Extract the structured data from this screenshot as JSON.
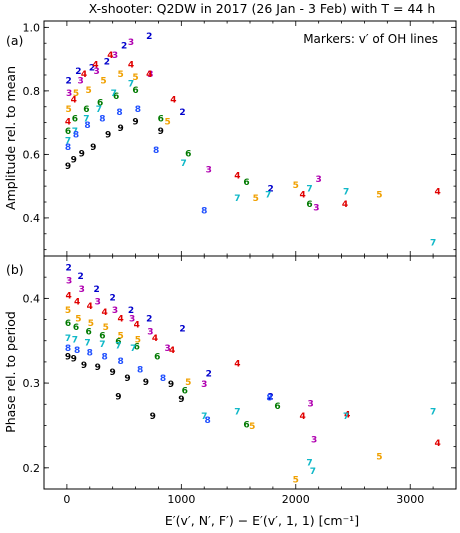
{
  "figure": {
    "title": "X-shooter: Q2DW in 2017 (26 Jan - 3 Feb) with T = 44 h",
    "xlabel": "E′(v′, N′, F′) − E′(v′, 1, 1) [cm⁻¹]"
  },
  "colors": {
    "2": "#0000cc",
    "3": "#b000b0",
    "4": "#e00000",
    "5": "#f0a000",
    "6": "#007a00",
    "7": "#10b8c8",
    "8": "#2050ff",
    "9": "#000000"
  },
  "chart_data": [
    {
      "type": "scatter",
      "panel_label": "(a)",
      "ylabel": "Amplitude rel. to mean",
      "annotation": "Markers: v′ of OH lines",
      "xlim": [
        -200,
        3400
      ],
      "ylim": [
        0.28,
        1.02
      ],
      "xticks": [
        0,
        1000,
        2000,
        3000
      ],
      "yticks": [
        0.4,
        0.6,
        0.8,
        1.0
      ],
      "ytick_labels": [
        "0.4",
        "0.6",
        "0.8",
        "1.0"
      ],
      "series": [
        {
          "marker": "2",
          "points": [
            [
              15,
              0.83
            ],
            [
              100,
              0.86
            ],
            [
              220,
              0.87
            ],
            [
              350,
              0.89
            ],
            [
              500,
              0.94
            ],
            [
              720,
              0.97
            ],
            [
              1010,
              0.73
            ],
            [
              1780,
              0.49
            ]
          ]
        },
        {
          "marker": "3",
          "points": [
            [
              20,
              0.79
            ],
            [
              120,
              0.83
            ],
            [
              260,
              0.86
            ],
            [
              420,
              0.91
            ],
            [
              560,
              0.95
            ],
            [
              730,
              0.85
            ],
            [
              1240,
              0.55
            ],
            [
              2180,
              0.43
            ],
            [
              2200,
              0.52
            ]
          ]
        },
        {
          "marker": "4",
          "points": [
            [
              10,
              0.7
            ],
            [
              60,
              0.77
            ],
            [
              150,
              0.85
            ],
            [
              250,
              0.88
            ],
            [
              380,
              0.91
            ],
            [
              560,
              0.88
            ],
            [
              720,
              0.85
            ],
            [
              930,
              0.77
            ],
            [
              1490,
              0.53
            ],
            [
              2060,
              0.47
            ],
            [
              2430,
              0.44
            ],
            [
              3240,
              0.48
            ]
          ]
        },
        {
          "marker": "5",
          "points": [
            [
              15,
              0.74
            ],
            [
              80,
              0.79
            ],
            [
              190,
              0.8
            ],
            [
              320,
              0.83
            ],
            [
              470,
              0.85
            ],
            [
              600,
              0.84
            ],
            [
              880,
              0.7
            ],
            [
              1650,
              0.46
            ],
            [
              2000,
              0.5
            ],
            [
              2730,
              0.47
            ]
          ]
        },
        {
          "marker": "6",
          "points": [
            [
              10,
              0.67
            ],
            [
              70,
              0.71
            ],
            [
              170,
              0.74
            ],
            [
              290,
              0.76
            ],
            [
              430,
              0.78
            ],
            [
              600,
              0.8
            ],
            [
              820,
              0.71
            ],
            [
              1060,
              0.6
            ],
            [
              1570,
              0.51
            ],
            [
              2120,
              0.44
            ]
          ]
        },
        {
          "marker": "7",
          "points": [
            [
              10,
              0.64
            ],
            [
              70,
              0.67
            ],
            [
              170,
              0.71
            ],
            [
              280,
              0.74
            ],
            [
              410,
              0.79
            ],
            [
              560,
              0.82
            ],
            [
              1020,
              0.57
            ],
            [
              1490,
              0.46
            ],
            [
              1760,
              0.47
            ],
            [
              2120,
              0.49
            ],
            [
              2440,
              0.48
            ],
            [
              3200,
              0.32
            ]
          ]
        },
        {
          "marker": "8",
          "points": [
            [
              10,
              0.62
            ],
            [
              80,
              0.66
            ],
            [
              180,
              0.69
            ],
            [
              310,
              0.71
            ],
            [
              460,
              0.73
            ],
            [
              620,
              0.74
            ],
            [
              780,
              0.61
            ],
            [
              1200,
              0.42
            ]
          ]
        },
        {
          "marker": "9",
          "points": [
            [
              10,
              0.56
            ],
            [
              60,
              0.58
            ],
            [
              130,
              0.6
            ],
            [
              230,
              0.62
            ],
            [
              360,
              0.66
            ],
            [
              470,
              0.68
            ],
            [
              600,
              0.7
            ],
            [
              820,
              0.67
            ]
          ]
        }
      ]
    },
    {
      "type": "scatter",
      "panel_label": "(b)",
      "ylabel": "Phase rel. to period",
      "xlim": [
        -200,
        3400
      ],
      "ylim": [
        0.175,
        0.45
      ],
      "xticks": [
        0,
        1000,
        2000,
        3000
      ],
      "yticks": [
        0.2,
        0.3,
        0.4
      ],
      "ytick_labels": [
        "0.2",
        "0.3",
        "0.4"
      ],
      "series": [
        {
          "marker": "2",
          "points": [
            [
              15,
              0.435
            ],
            [
              120,
              0.425
            ],
            [
              260,
              0.41
            ],
            [
              400,
              0.4
            ],
            [
              560,
              0.385
            ],
            [
              720,
              0.375
            ],
            [
              1010,
              0.363
            ],
            [
              1240,
              0.31
            ],
            [
              1780,
              0.283
            ]
          ]
        },
        {
          "marker": "3",
          "points": [
            [
              20,
              0.42
            ],
            [
              130,
              0.41
            ],
            [
              270,
              0.395
            ],
            [
              420,
              0.385
            ],
            [
              570,
              0.375
            ],
            [
              730,
              0.36
            ],
            [
              880,
              0.34
            ],
            [
              1200,
              0.298
            ],
            [
              2130,
              0.275
            ],
            [
              2160,
              0.232
            ]
          ]
        },
        {
          "marker": "4",
          "points": [
            [
              15,
              0.402
            ],
            [
              90,
              0.395
            ],
            [
              200,
              0.39
            ],
            [
              330,
              0.383
            ],
            [
              470,
              0.375
            ],
            [
              610,
              0.368
            ],
            [
              770,
              0.352
            ],
            [
              920,
              0.338
            ],
            [
              1490,
              0.322
            ],
            [
              2060,
              0.26
            ],
            [
              2450,
              0.262
            ],
            [
              3240,
              0.228
            ]
          ]
        },
        {
          "marker": "5",
          "points": [
            [
              10,
              0.385
            ],
            [
              100,
              0.375
            ],
            [
              210,
              0.37
            ],
            [
              340,
              0.365
            ],
            [
              470,
              0.355
            ],
            [
              620,
              0.35
            ],
            [
              1060,
              0.3
            ],
            [
              1620,
              0.248
            ],
            [
              2000,
              0.185
            ],
            [
              2730,
              0.212
            ]
          ]
        },
        {
          "marker": "6",
          "points": [
            [
              10,
              0.37
            ],
            [
              80,
              0.365
            ],
            [
              190,
              0.36
            ],
            [
              310,
              0.355
            ],
            [
              450,
              0.348
            ],
            [
              610,
              0.342
            ],
            [
              790,
              0.33
            ],
            [
              1030,
              0.29
            ],
            [
              1570,
              0.25
            ],
            [
              1840,
              0.272
            ]
          ]
        },
        {
          "marker": "7",
          "points": [
            [
              10,
              0.352
            ],
            [
              70,
              0.35
            ],
            [
              180,
              0.347
            ],
            [
              310,
              0.345
            ],
            [
              450,
              0.343
            ],
            [
              580,
              0.34
            ],
            [
              1200,
              0.26
            ],
            [
              1490,
              0.265
            ],
            [
              2120,
              0.205
            ],
            [
              2150,
              0.195
            ],
            [
              2440,
              0.26
            ],
            [
              3200,
              0.265
            ]
          ]
        },
        {
          "marker": "8",
          "points": [
            [
              10,
              0.34
            ],
            [
              90,
              0.338
            ],
            [
              200,
              0.335
            ],
            [
              330,
              0.33
            ],
            [
              470,
              0.325
            ],
            [
              640,
              0.315
            ],
            [
              840,
              0.305
            ],
            [
              1230,
              0.255
            ],
            [
              1770,
              0.282
            ]
          ]
        },
        {
          "marker": "9",
          "points": [
            [
              10,
              0.33
            ],
            [
              60,
              0.328
            ],
            [
              150,
              0.32
            ],
            [
              270,
              0.318
            ],
            [
              400,
              0.312
            ],
            [
              530,
              0.305
            ],
            [
              690,
              0.3
            ],
            [
              910,
              0.298
            ],
            [
              1000,
              0.28
            ],
            [
              750,
              0.26
            ],
            [
              450,
              0.283
            ]
          ]
        }
      ]
    }
  ]
}
